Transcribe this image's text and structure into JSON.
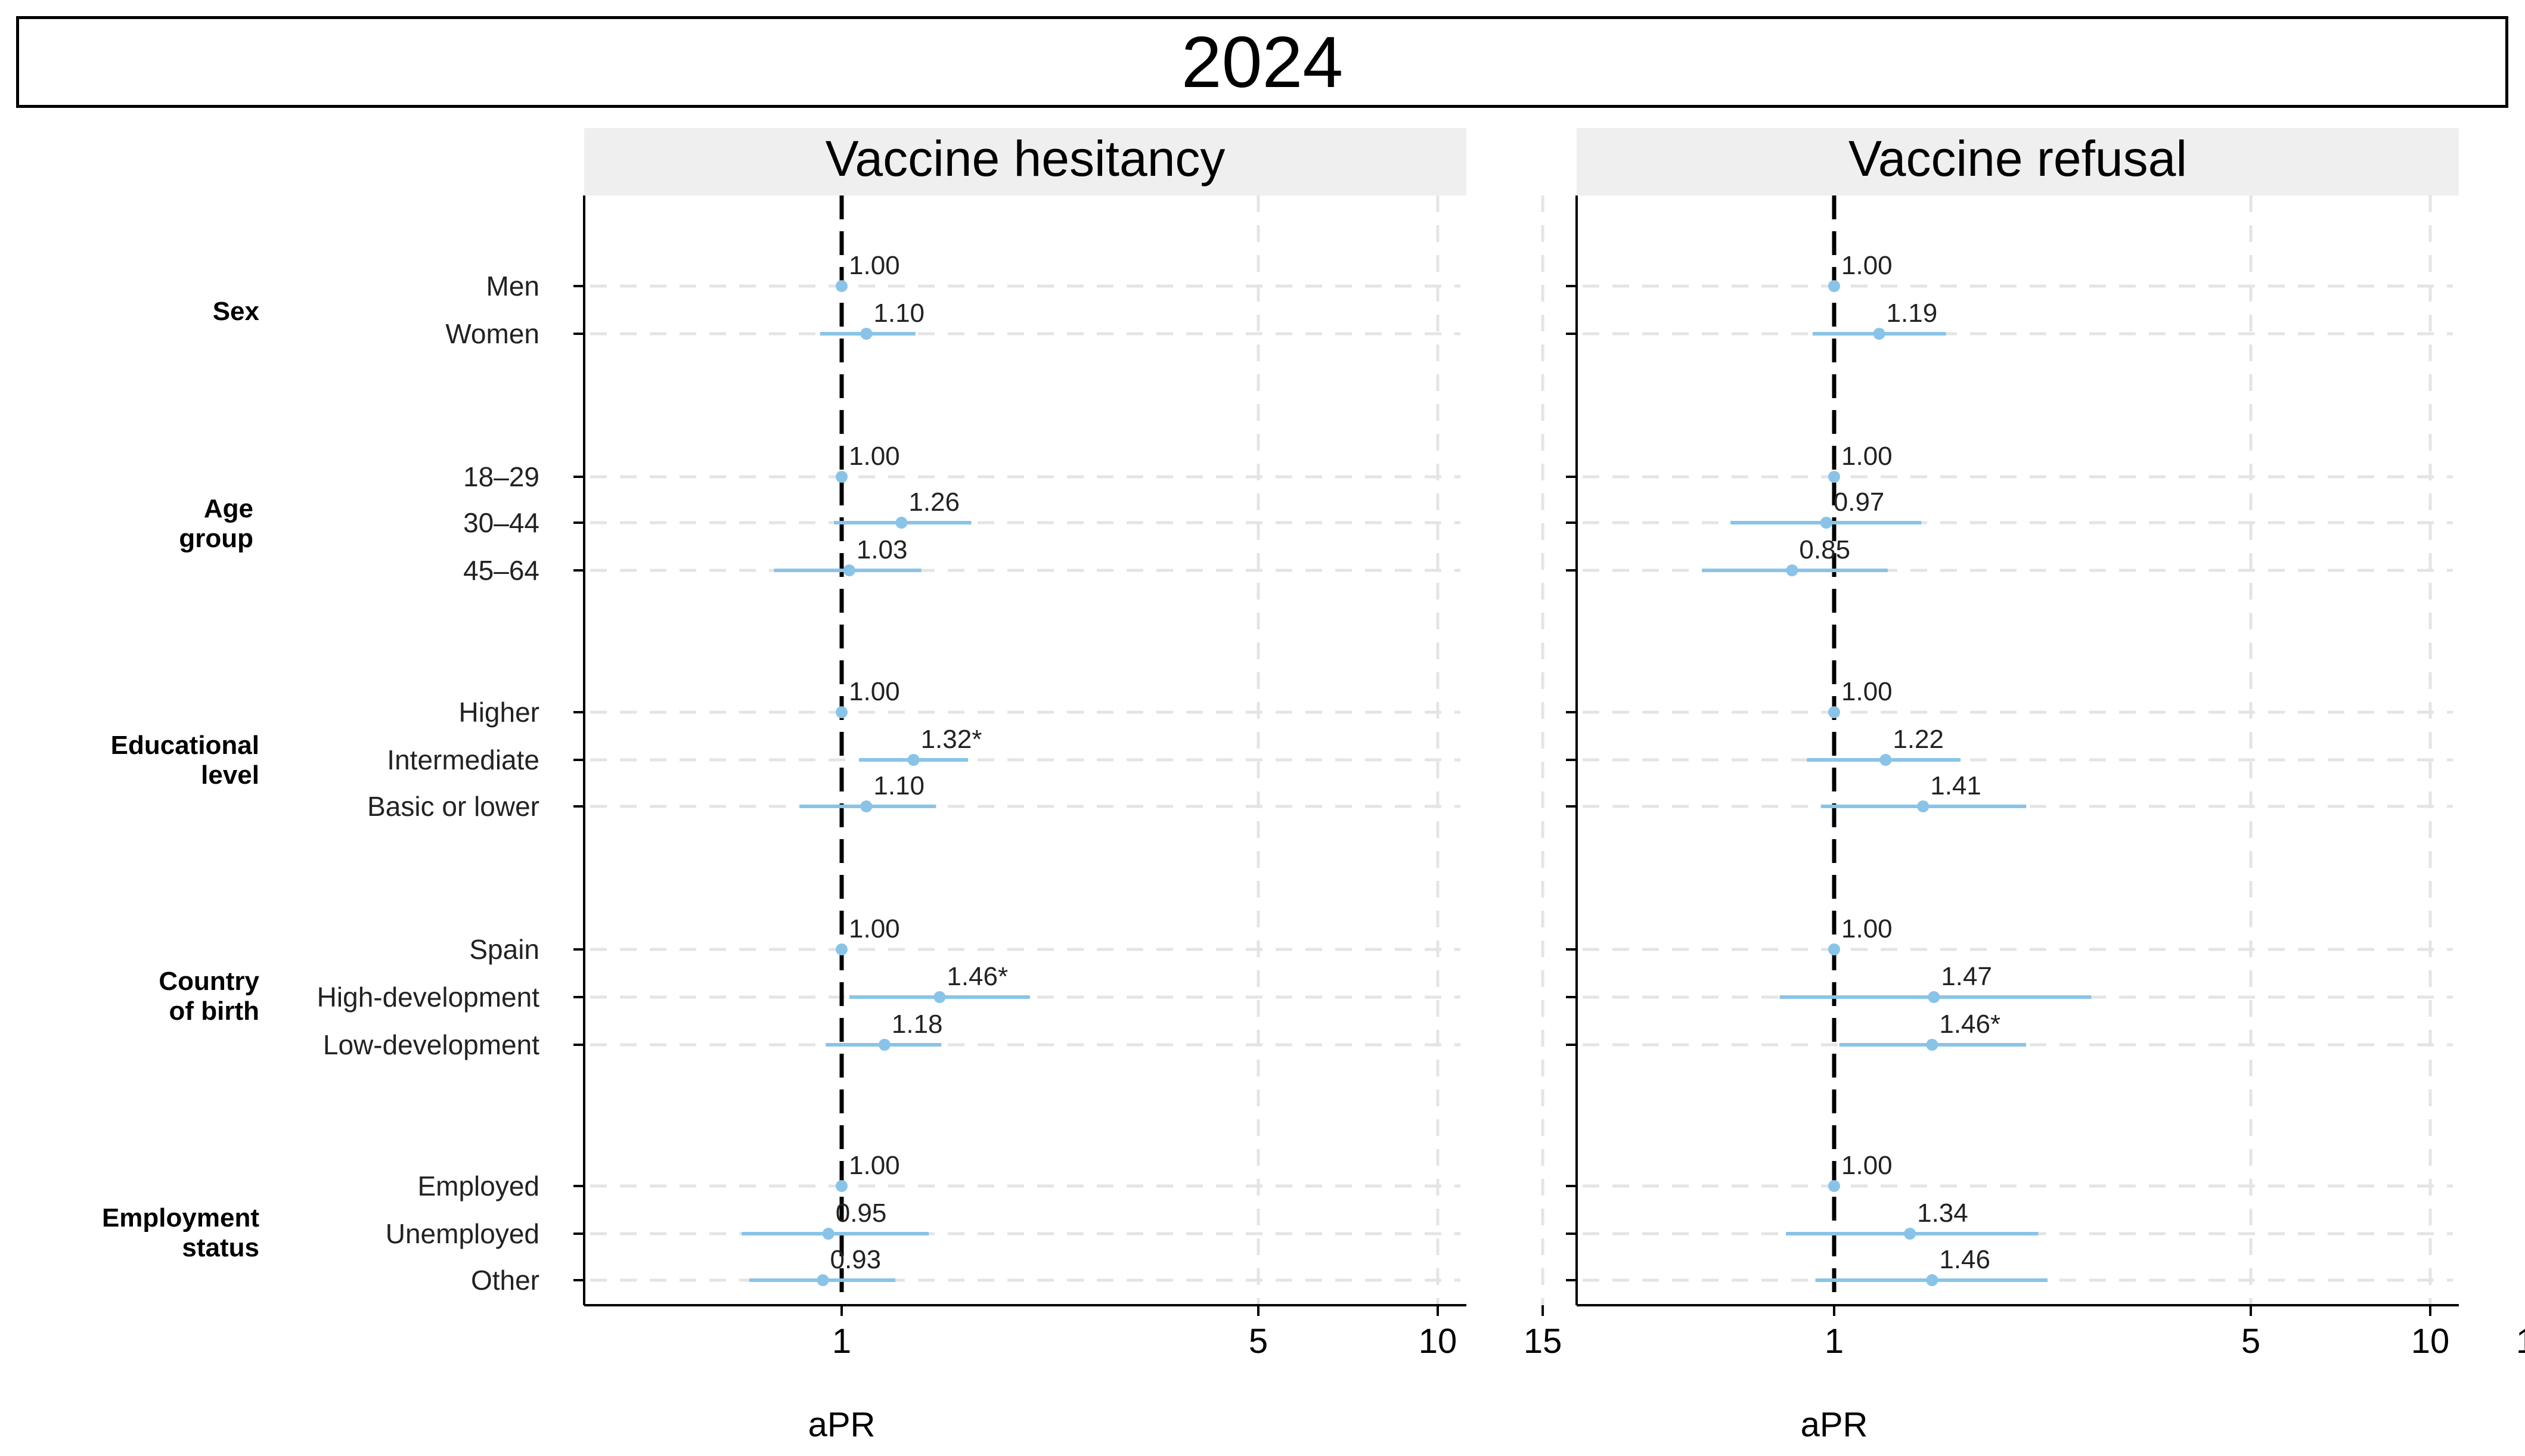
{
  "title": "2024",
  "chart_data": {
    "type": "forest",
    "x_scale": "log",
    "x_label": "aPR",
    "x_ticks": [
      1,
      5,
      10,
      15
    ],
    "reference_line": 1,
    "point_color": "#89c4e8",
    "groups": [
      {
        "label": "Sex",
        "categories": [
          "Men",
          "Women"
        ]
      },
      {
        "label": "Age group",
        "categories": [
          "18–29",
          "30–44",
          "45–64"
        ]
      },
      {
        "label": "Educational level",
        "categories": [
          "Higher",
          "Intermediate",
          "Basic or lower"
        ]
      },
      {
        "label": "Country of birth",
        "categories": [
          "Spain",
          "High-development",
          "Low-development"
        ]
      },
      {
        "label": "Employment status",
        "categories": [
          "Employed",
          "Unemployed",
          "Other"
        ]
      }
    ],
    "panels": [
      {
        "title": "Vaccine hesitancy",
        "rows": [
          [
            {
              "est": 1.0,
              "lo": 1.0,
              "hi": 1.0,
              "label": "1.00"
            },
            {
              "est": 1.1,
              "lo": 0.92,
              "hi": 1.33,
              "label": "1.10"
            }
          ],
          [
            {
              "est": 1.0,
              "lo": 1.0,
              "hi": 1.0,
              "label": "1.00"
            },
            {
              "est": 1.26,
              "lo": 0.97,
              "hi": 1.65,
              "label": "1.26"
            },
            {
              "est": 1.03,
              "lo": 0.77,
              "hi": 1.36,
              "label": "1.03"
            }
          ],
          [
            {
              "est": 1.0,
              "lo": 1.0,
              "hi": 1.0,
              "label": "1.00"
            },
            {
              "est": 1.32,
              "lo": 1.07,
              "hi": 1.63,
              "label": "1.32*"
            },
            {
              "est": 1.1,
              "lo": 0.85,
              "hi": 1.44,
              "label": "1.10"
            }
          ],
          [
            {
              "est": 1.0,
              "lo": 1.0,
              "hi": 1.0,
              "label": "1.00"
            },
            {
              "est": 1.46,
              "lo": 1.03,
              "hi": 2.07,
              "label": "1.46*"
            },
            {
              "est": 1.18,
              "lo": 0.94,
              "hi": 1.47,
              "label": "1.18"
            }
          ],
          [
            {
              "est": 1.0,
              "lo": 1.0,
              "hi": 1.0,
              "label": "1.00"
            },
            {
              "est": 0.95,
              "lo": 0.68,
              "hi": 1.4,
              "label": "0.95"
            },
            {
              "est": 0.93,
              "lo": 0.7,
              "hi": 1.23,
              "label": "0.93"
            }
          ]
        ]
      },
      {
        "title": "Vaccine refusal",
        "rows": [
          [
            {
              "est": 1.0,
              "lo": 1.0,
              "hi": 1.0,
              "label": "1.00"
            },
            {
              "est": 1.19,
              "lo": 0.92,
              "hi": 1.54,
              "label": "1.19"
            }
          ],
          [
            {
              "est": 1.0,
              "lo": 1.0,
              "hi": 1.0,
              "label": "1.00"
            },
            {
              "est": 0.97,
              "lo": 0.67,
              "hi": 1.4,
              "label": "0.97"
            },
            {
              "est": 0.85,
              "lo": 0.6,
              "hi": 1.23,
              "label": "0.85"
            }
          ],
          [
            {
              "est": 1.0,
              "lo": 1.0,
              "hi": 1.0,
              "label": "1.00"
            },
            {
              "est": 1.22,
              "lo": 0.9,
              "hi": 1.63,
              "label": "1.22"
            },
            {
              "est": 1.41,
              "lo": 0.95,
              "hi": 2.1,
              "label": "1.41"
            }
          ],
          [
            {
              "est": 1.0,
              "lo": 1.0,
              "hi": 1.0,
              "label": "1.00"
            },
            {
              "est": 1.47,
              "lo": 0.81,
              "hi": 2.7,
              "label": "1.47"
            },
            {
              "est": 1.46,
              "lo": 1.02,
              "hi": 2.1,
              "label": "1.46*"
            }
          ],
          [
            {
              "est": 1.0,
              "lo": 1.0,
              "hi": 1.0,
              "label": "1.00"
            },
            {
              "est": 1.34,
              "lo": 0.83,
              "hi": 2.2,
              "label": "1.34"
            },
            {
              "est": 1.46,
              "lo": 0.93,
              "hi": 2.28,
              "label": "1.46"
            }
          ]
        ]
      }
    ]
  }
}
